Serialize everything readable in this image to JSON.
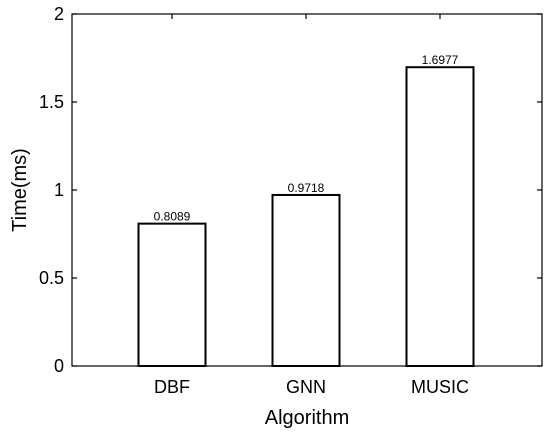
{
  "chart_data": {
    "type": "bar",
    "categories": [
      "DBF",
      "GNN",
      "MUSIC"
    ],
    "values": [
      0.8089,
      0.9718,
      1.6977
    ],
    "data_labels": [
      "0.8089",
      "0.9718",
      "1.6977"
    ],
    "title": "",
    "xlabel": "Algorithm",
    "ylabel": "Time(ms)",
    "ylim": [
      0,
      2
    ],
    "yticks": [
      "0",
      "0.5",
      "1",
      "1.5",
      "2"
    ],
    "grid": false,
    "bar_fill": "#ffffff",
    "bar_stroke": "#000000"
  }
}
